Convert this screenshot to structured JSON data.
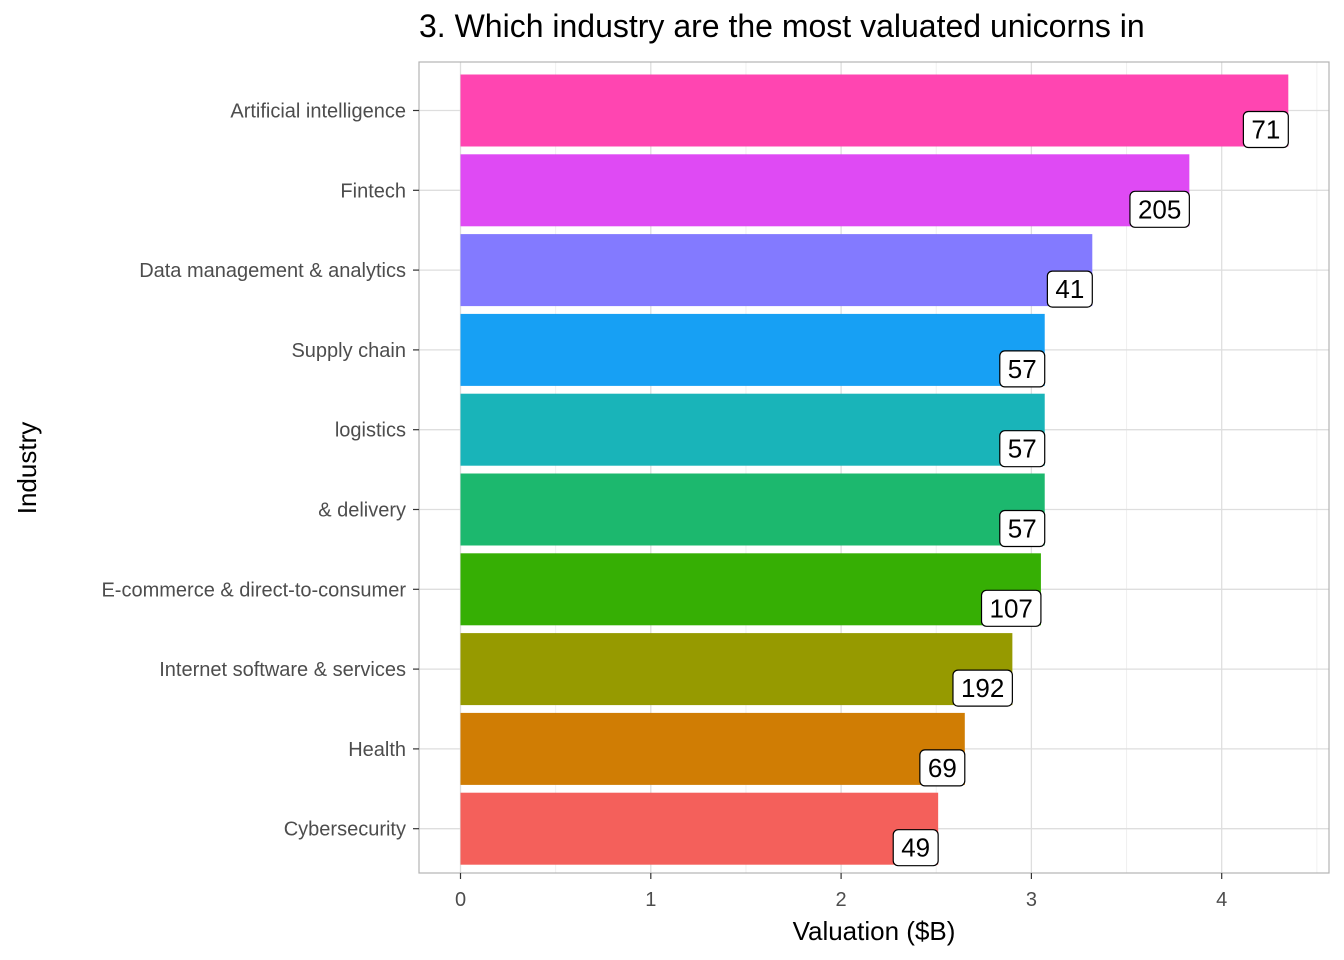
{
  "chart_data": {
    "type": "bar",
    "orientation": "horizontal",
    "title": "3. Which industry are the most valuated unicorns in",
    "xlabel": "Valuation ($B)",
    "ylabel": "Industry",
    "xlim": [
      -0.2,
      4.57
    ],
    "xticks": [
      "0",
      "1",
      "2",
      "3",
      "4"
    ],
    "grid": true,
    "categories": [
      "Artificial intelligence",
      "Fintech",
      "Data management & analytics",
      "Supply chain",
      "logistics",
      "& delivery",
      "E-commerce & direct-to-consumer",
      "Internet software & services",
      "Health",
      "Cybersecurity"
    ],
    "values": [
      4.35,
      3.83,
      3.32,
      3.07,
      3.07,
      3.07,
      3.05,
      2.9,
      2.65,
      2.51
    ],
    "labels": [
      "71",
      "205",
      "41",
      "57",
      "57",
      "57",
      "107",
      "192",
      "69",
      "49"
    ],
    "colors": [
      "#FF45B1",
      "#DF4AF4",
      "#837AFF",
      "#17A0F4",
      "#19B4B9",
      "#1CB86E",
      "#36AF04",
      "#969A00",
      "#D07D04",
      "#F4605B"
    ]
  }
}
